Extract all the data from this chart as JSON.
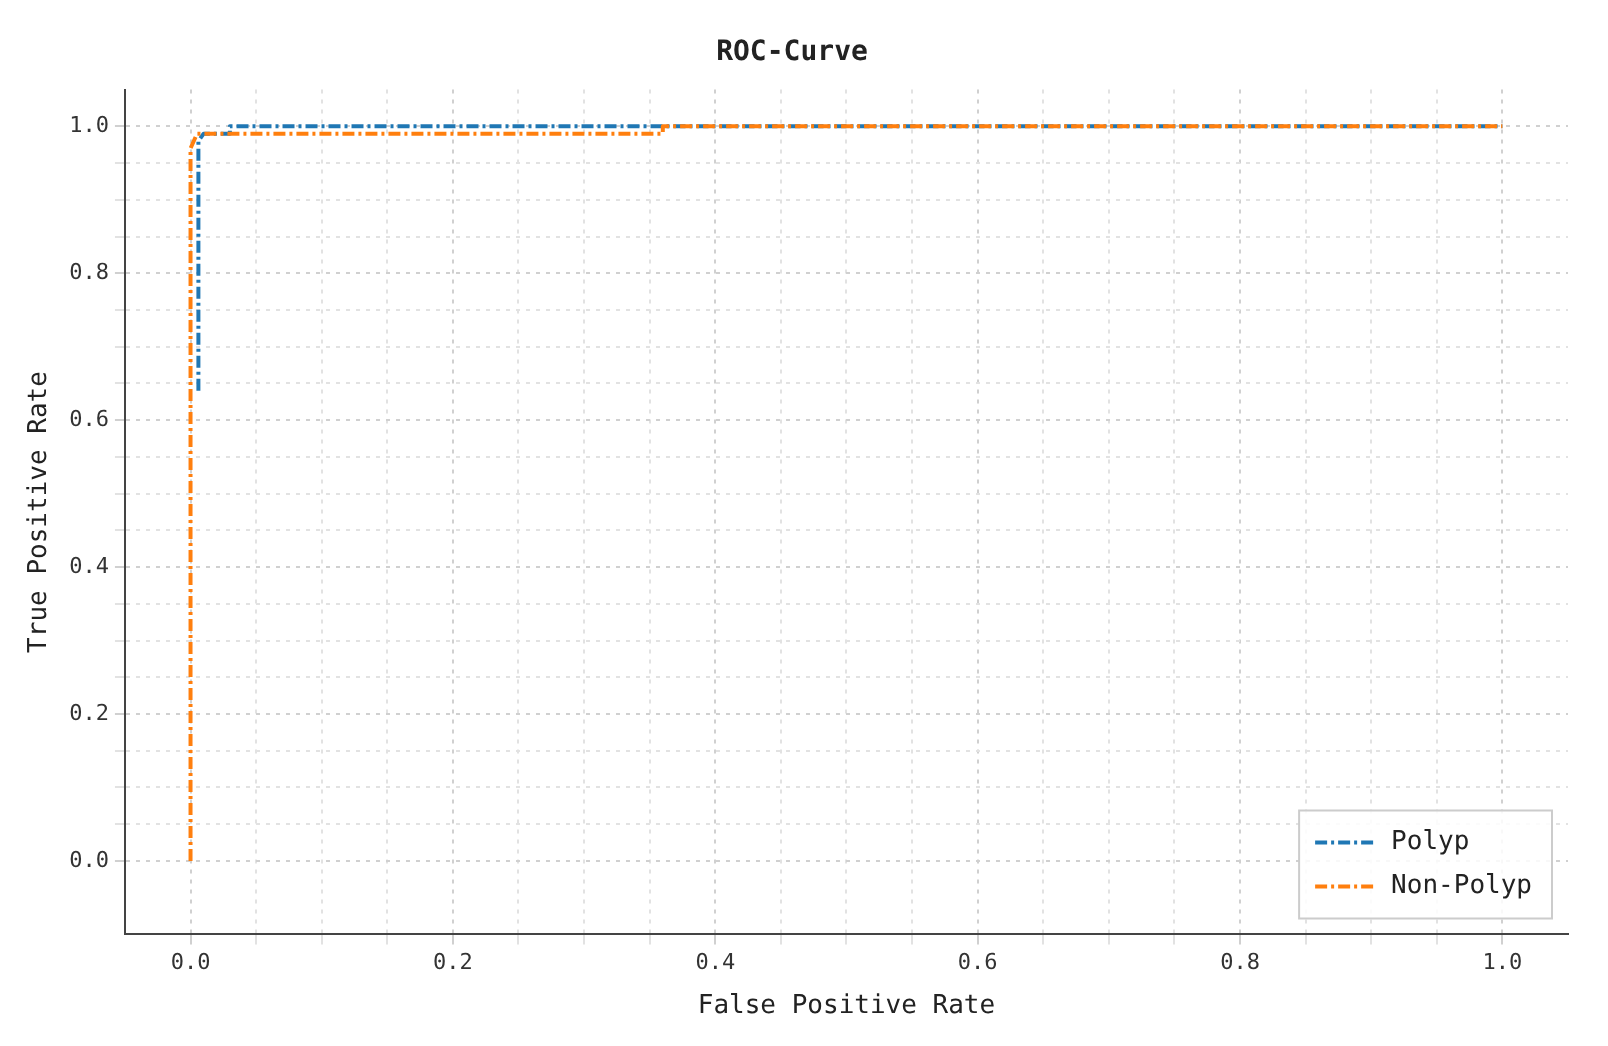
{
  "chart_data": {
    "type": "line",
    "title": "ROC-Curve",
    "xlabel": "False Positive Rate",
    "ylabel": "True Positive Rate",
    "xlim": [
      -0.05,
      1.05
    ],
    "ylim": [
      -0.1,
      1.05
    ],
    "xticks": [
      {
        "value": 0,
        "label": "0.0"
      },
      {
        "value": 0.05,
        "label": null
      },
      {
        "value": 0.1,
        "label": null
      },
      {
        "value": 0.15,
        "label": null
      },
      {
        "value": 0.2,
        "label": "0.2"
      },
      {
        "value": 0.25,
        "label": null
      },
      {
        "value": 0.3,
        "label": null
      },
      {
        "value": 0.35,
        "label": null
      },
      {
        "value": 0.4,
        "label": "0.4"
      },
      {
        "value": 0.45,
        "label": null
      },
      {
        "value": 0.5,
        "label": null
      },
      {
        "value": 0.55,
        "label": null
      },
      {
        "value": 0.6,
        "label": "0.6"
      },
      {
        "value": 0.65,
        "label": null
      },
      {
        "value": 0.7,
        "label": null
      },
      {
        "value": 0.75,
        "label": null
      },
      {
        "value": 0.8,
        "label": "0.8"
      },
      {
        "value": 0.85,
        "label": null
      },
      {
        "value": 0.9,
        "label": null
      },
      {
        "value": 0.95,
        "label": null
      },
      {
        "value": 1,
        "label": "1.0"
      }
    ],
    "yticks": [
      {
        "value": 0,
        "label": "0.0"
      },
      {
        "value": 0.05,
        "label": null
      },
      {
        "value": 0.1,
        "label": null
      },
      {
        "value": 0.15,
        "label": null
      },
      {
        "value": 0.2,
        "label": "0.2"
      },
      {
        "value": 0.25,
        "label": null
      },
      {
        "value": 0.3,
        "label": null
      },
      {
        "value": 0.35,
        "label": null
      },
      {
        "value": 0.4,
        "label": "0.4"
      },
      {
        "value": 0.45,
        "label": null
      },
      {
        "value": 0.5,
        "label": null
      },
      {
        "value": 0.55,
        "label": null
      },
      {
        "value": 0.6,
        "label": "0.6"
      },
      {
        "value": 0.65,
        "label": null
      },
      {
        "value": 0.7,
        "label": null
      },
      {
        "value": 0.75,
        "label": null
      },
      {
        "value": 0.8,
        "label": "0.8"
      },
      {
        "value": 0.85,
        "label": null
      },
      {
        "value": 0.9,
        "label": null
      },
      {
        "value": 0.95,
        "label": null
      },
      {
        "value": 1,
        "label": "1.0"
      }
    ],
    "grid": true,
    "legend": "bottom right",
    "marker": "none",
    "line_style": "dashed",
    "series": [
      {
        "name": "Polyp",
        "color": "#1f77b4",
        "x": [
          0.006,
          0.006,
          0.01,
          0.03,
          0.03,
          1
        ],
        "values": [
          0.64,
          0.98,
          0.99,
          0.99,
          1,
          1
        ]
      },
      {
        "name": "Non-Polyp",
        "color": "#ff7f0e",
        "x": [
          0,
          0,
          0.005,
          0.36,
          0.36,
          1
        ],
        "values": [
          0,
          0.97,
          0.99,
          0.99,
          1,
          1
        ]
      }
    ]
  }
}
